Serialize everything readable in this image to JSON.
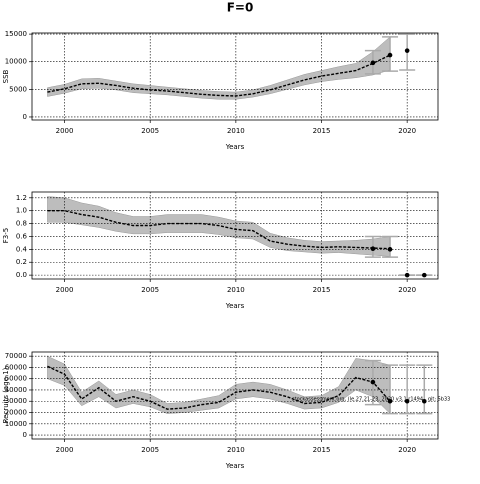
{
  "title": "F=0",
  "chart_data": [
    {
      "type": "line",
      "ylabel": "SSB",
      "xlabel": "Years",
      "color": "#000000",
      "band_color": "#bdbdbd",
      "grid": true,
      "x": [
        1999,
        2000,
        2001,
        2002,
        2003,
        2004,
        2005,
        2006,
        2007,
        2008,
        2009,
        2010,
        2011,
        2012,
        2013,
        2014,
        2015,
        2016,
        2017,
        2018,
        2019
      ],
      "values": [
        4500,
        5100,
        6000,
        6100,
        5700,
        5200,
        4900,
        4700,
        4400,
        4100,
        3900,
        3800,
        4200,
        4900,
        5800,
        6700,
        7400,
        7900,
        8400,
        9700,
        11200
      ],
      "lower": [
        3700,
        4300,
        5100,
        5200,
        4900,
        4400,
        4200,
        4000,
        3700,
        3400,
        3200,
        3200,
        3600,
        4200,
        5000,
        5800,
        6400,
        6800,
        7100,
        7600,
        8500
      ],
      "upper": [
        5300,
        5900,
        6900,
        7000,
        6500,
        6000,
        5700,
        5400,
        5100,
        4800,
        4600,
        4500,
        4900,
        5700,
        6700,
        7700,
        8400,
        9100,
        9700,
        11800,
        14500
      ],
      "points": {
        "x": [
          2018,
          2019,
          2020
        ],
        "values": [
          9800,
          11200,
          12000
        ],
        "lower": [
          7800,
          8300,
          8500
        ],
        "upper": [
          12000,
          14500,
          15000
        ]
      },
      "xlim": [
        1998.1,
        2021.8
      ],
      "ylim": [
        -550,
        15200
      ],
      "xticks": [
        2000,
        2005,
        2010,
        2015,
        2020
      ],
      "yticks": [
        0,
        5000,
        10000,
        15000
      ]
    },
    {
      "type": "line",
      "ylabel": "F3-5",
      "xlabel": "Years",
      "color": "#000000",
      "band_color": "#bdbdbd",
      "grid": true,
      "x": [
        1999,
        2000,
        2001,
        2002,
        2003,
        2004,
        2005,
        2006,
        2007,
        2008,
        2009,
        2010,
        2011,
        2012,
        2013,
        2014,
        2015,
        2016,
        2017,
        2018,
        2019
      ],
      "values": [
        1.0,
        1.0,
        0.94,
        0.9,
        0.82,
        0.77,
        0.77,
        0.8,
        0.8,
        0.8,
        0.77,
        0.71,
        0.69,
        0.53,
        0.48,
        0.45,
        0.43,
        0.44,
        0.43,
        0.42,
        0.41
      ],
      "lower": [
        0.82,
        0.82,
        0.78,
        0.74,
        0.68,
        0.64,
        0.64,
        0.66,
        0.66,
        0.66,
        0.63,
        0.58,
        0.56,
        0.43,
        0.38,
        0.36,
        0.34,
        0.35,
        0.33,
        0.31,
        0.29
      ],
      "upper": [
        1.22,
        1.2,
        1.12,
        1.07,
        0.97,
        0.91,
        0.91,
        0.94,
        0.94,
        0.94,
        0.9,
        0.84,
        0.82,
        0.65,
        0.58,
        0.54,
        0.52,
        0.53,
        0.54,
        0.56,
        0.6
      ],
      "points": {
        "x": [
          2018,
          2019,
          2020,
          2021
        ],
        "values": [
          0.41,
          0.4,
          0,
          0
        ],
        "lower": [
          0.28,
          0.28,
          0,
          0
        ],
        "upper": [
          0.6,
          0.6,
          0,
          0
        ]
      },
      "xlim": [
        1998.1,
        2021.8
      ],
      "ylim": [
        -0.06,
        1.29
      ],
      "xticks": [
        2000,
        2005,
        2010,
        2015,
        2020
      ],
      "yticks": [
        {
          "value": 0,
          "label": "0.0"
        },
        0.2,
        0.4,
        0.6,
        0.8,
        {
          "value": 1,
          "label": "1.0"
        },
        1.2
      ]
    },
    {
      "type": "line",
      "ylabel": "Recruits (age 1)",
      "xlabel": "Years",
      "color": "#000000",
      "band_color": "#bdbdbd",
      "grid": true,
      "annotation": "stockassessment.org, (le.27.21-23, 2020 v3.1 r1494 , git: 5b33",
      "x": [
        1999,
        2000,
        2001,
        2002,
        2003,
        2004,
        2005,
        2006,
        2007,
        2008,
        2009,
        2010,
        2011,
        2012,
        2013,
        2014,
        2015,
        2016,
        2017,
        2018,
        2019
      ],
      "values": [
        61000,
        54000,
        32000,
        42000,
        30000,
        34000,
        30000,
        23000,
        24000,
        27000,
        29000,
        38000,
        40000,
        38000,
        34000,
        28000,
        29000,
        35000,
        51000,
        47000,
        30000
      ],
      "lower": [
        50000,
        44000,
        26000,
        34000,
        24000,
        28000,
        25000,
        19000,
        20000,
        22000,
        24000,
        32000,
        34000,
        32000,
        28000,
        23000,
        24000,
        29000,
        40000,
        34000,
        19000
      ],
      "upper": [
        70000,
        63000,
        38000,
        48000,
        36000,
        40000,
        36000,
        28000,
        29000,
        32000,
        35000,
        45000,
        47000,
        45000,
        40000,
        34000,
        35000,
        43000,
        68000,
        66000,
        62000
      ],
      "points": {
        "x": [
          2018,
          2019,
          2020,
          2021
        ],
        "values": [
          47000,
          30000,
          30000,
          30000
        ],
        "lower": [
          27000,
          19000,
          19000,
          19000
        ],
        "upper": [
          66000,
          62000,
          62000,
          62000
        ]
      },
      "xlim": [
        1998.1,
        2021.8
      ],
      "ylim": [
        -3500,
        73700
      ],
      "xticks": [
        2000,
        2005,
        2010,
        2015,
        2020
      ],
      "yticks": [
        0,
        10000,
        20000,
        30000,
        40000,
        50000,
        60000,
        70000
      ]
    }
  ]
}
